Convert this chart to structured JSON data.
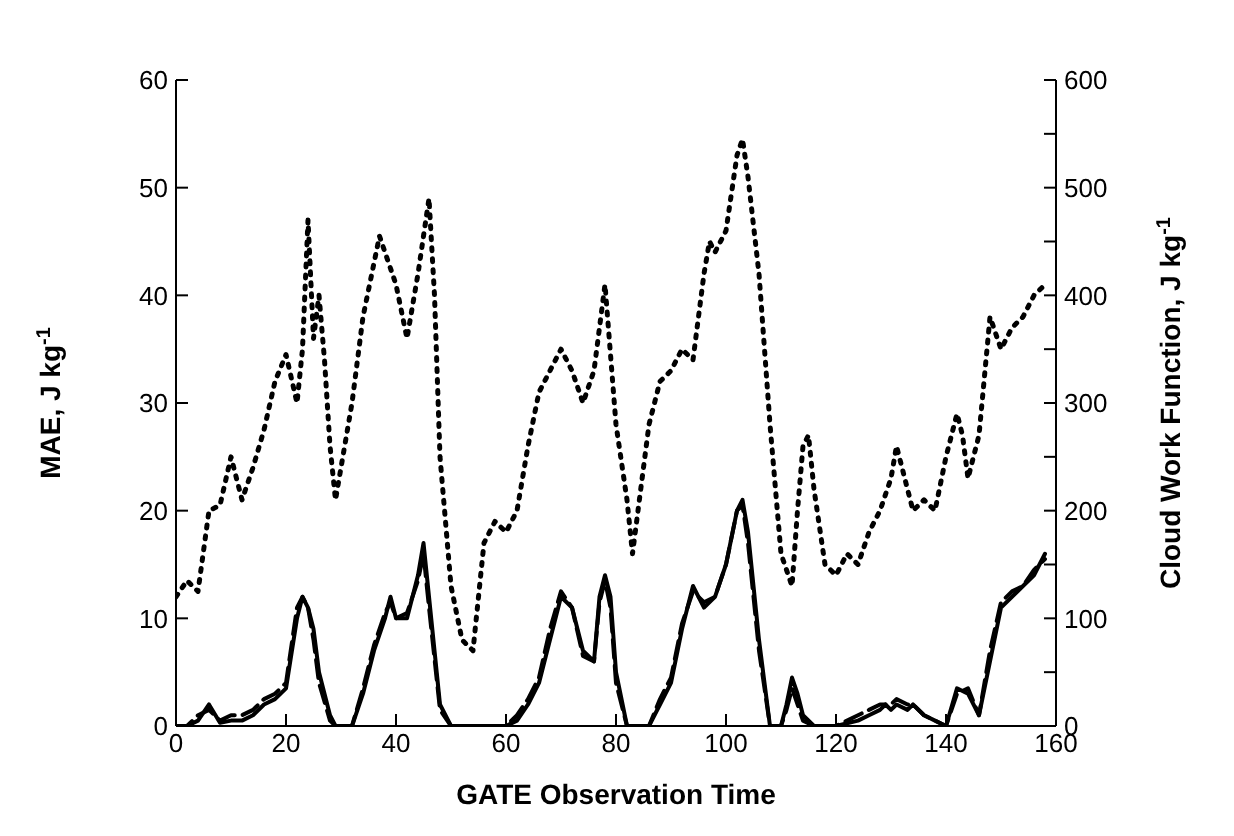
{
  "chart_data": {
    "type": "line",
    "xlabel": "GATE Observation Time",
    "ylabel": "MAE,  J kg$^{-1}$",
    "y2label": "Cloud Work Function,  J kg$^{-1}$",
    "xlim": [
      0,
      160
    ],
    "xticks": [
      0,
      20,
      40,
      60,
      80,
      100,
      120,
      140,
      160
    ],
    "ylim": [
      0,
      60
    ],
    "yticks": [
      0,
      10,
      20,
      30,
      40,
      50,
      60
    ],
    "y2lim": [
      0,
      600
    ],
    "y2ticks": [
      0,
      {
        "value": 50,
        "label": null
      },
      100,
      {
        "value": 150,
        "label": null
      },
      200,
      {
        "value": 250,
        "label": null
      },
      300,
      {
        "value": 350,
        "label": null
      },
      400,
      {
        "value": 450,
        "label": null
      },
      500,
      {
        "value": 550,
        "label": null
      },
      600
    ],
    "marker": "none",
    "series": [
      {
        "color": "#000000",
        "line_style": "dotted",
        "axis": "y2",
        "x": [
          0,
          2,
          4,
          6,
          8,
          10,
          12,
          14,
          16,
          18,
          20,
          22,
          23,
          24,
          25,
          26,
          27,
          28,
          29,
          30,
          32,
          34,
          36,
          37,
          38,
          40,
          42,
          44,
          46,
          47,
          48,
          50,
          52,
          54,
          56,
          58,
          60,
          62,
          64,
          66,
          68,
          70,
          72,
          74,
          76,
          78,
          80,
          82,
          83,
          84,
          86,
          88,
          90,
          92,
          94,
          96,
          97,
          98,
          100,
          102,
          103,
          104,
          106,
          108,
          110,
          112,
          113,
          114,
          115,
          116,
          118,
          120,
          122,
          124,
          126,
          128,
          130,
          131,
          132,
          134,
          136,
          138,
          140,
          142,
          143,
          144,
          146,
          148,
          150,
          152,
          154,
          156,
          158
        ],
        "values": [
          120,
          135,
          125,
          200,
          205,
          250,
          210,
          240,
          275,
          320,
          345,
          300,
          350,
          470,
          360,
          400,
          340,
          260,
          210,
          240,
          300,
          380,
          430,
          455,
          440,
          410,
          360,
          420,
          490,
          400,
          250,
          130,
          80,
          70,
          170,
          190,
          180,
          200,
          260,
          310,
          330,
          350,
          330,
          300,
          330,
          410,
          280,
          210,
          160,
          200,
          280,
          320,
          330,
          350,
          340,
          420,
          450,
          440,
          460,
          530,
          545,
          510,
          420,
          280,
          160,
          130,
          200,
          260,
          270,
          220,
          150,
          140,
          160,
          150,
          180,
          200,
          230,
          260,
          240,
          200,
          210,
          200,
          250,
          290,
          270,
          230,
          270,
          380,
          350,
          370,
          380,
          400,
          410
        ]
      },
      {
        "color": "#000000",
        "line_style": "solid",
        "x": [
          0,
          2,
          4,
          6,
          8,
          10,
          12,
          14,
          16,
          18,
          20,
          22,
          23,
          24,
          25,
          26,
          28,
          29,
          32,
          34,
          36,
          38,
          39,
          40,
          42,
          44,
          45,
          46,
          48,
          50,
          60,
          62,
          64,
          66,
          68,
          70,
          72,
          74,
          76,
          77,
          78,
          79,
          80,
          82,
          86,
          88,
          90,
          92,
          94,
          95,
          96,
          98,
          100,
          102,
          103,
          104,
          106,
          108,
          110,
          111,
          112,
          113,
          114,
          116,
          120,
          124,
          126,
          128,
          129,
          130,
          131,
          133,
          134,
          136,
          138,
          140,
          142,
          144,
          146,
          148,
          150,
          152,
          154,
          156,
          158
        ],
        "values": [
          0,
          0,
          0.5,
          2,
          0.3,
          0.5,
          0.5,
          1,
          2,
          2.5,
          3.5,
          10,
          12,
          11,
          9,
          5,
          1,
          0,
          0,
          3,
          7,
          10,
          12,
          10,
          10,
          14,
          17,
          12,
          2,
          0,
          0,
          0.5,
          2,
          4,
          8,
          12,
          11,
          7,
          6,
          12,
          14,
          12,
          5,
          0,
          0,
          2,
          4,
          9,
          13,
          12,
          11,
          12,
          15,
          20,
          21,
          18,
          8,
          0,
          0,
          2,
          4.5,
          3,
          1,
          0,
          0,
          0.5,
          1,
          1.5,
          2,
          1.5,
          2,
          1.5,
          2,
          1,
          0.5,
          0,
          3.5,
          3,
          1,
          6,
          11,
          12,
          13,
          14,
          16
        ]
      },
      {
        "color": "#000000",
        "line_style": "dashed",
        "x": [
          0,
          2,
          4,
          6,
          8,
          10,
          12,
          14,
          16,
          18,
          20,
          22,
          23,
          24,
          25,
          26,
          28,
          29,
          32,
          34,
          36,
          38,
          39,
          40,
          42,
          44,
          45,
          46,
          48,
          50,
          60,
          62,
          64,
          66,
          68,
          70,
          72,
          74,
          76,
          77,
          78,
          79,
          80,
          82,
          86,
          88,
          90,
          92,
          94,
          95,
          96,
          98,
          100,
          102,
          103,
          104,
          106,
          108,
          110,
          111,
          112,
          113,
          114,
          116,
          120,
          124,
          126,
          128,
          129,
          130,
          131,
          133,
          134,
          136,
          138,
          140,
          142,
          144,
          146,
          148,
          150,
          152,
          154,
          156,
          158
        ],
        "values": [
          0,
          0,
          1,
          1.5,
          0.5,
          1,
          1,
          1.5,
          2.5,
          3,
          4,
          11,
          12,
          11,
          8,
          4,
          0.5,
          0,
          0,
          3.5,
          7.5,
          10.5,
          11.5,
          10,
          10.5,
          13.5,
          16,
          11,
          1.5,
          0,
          0,
          1,
          2.5,
          4.5,
          9,
          12.5,
          11,
          6.5,
          6,
          11.5,
          13.5,
          11,
          4,
          0,
          0,
          2.5,
          4.5,
          9.5,
          12.5,
          12,
          11.5,
          12,
          15,
          20,
          20.5,
          17,
          7,
          0,
          0,
          1.5,
          3.5,
          2,
          0.5,
          0,
          0,
          1,
          1.5,
          2,
          2,
          2,
          2.5,
          2,
          2,
          1,
          0.5,
          0,
          3,
          3.5,
          1,
          7,
          11.5,
          12.5,
          13,
          14.5,
          15.5
        ]
      }
    ]
  }
}
